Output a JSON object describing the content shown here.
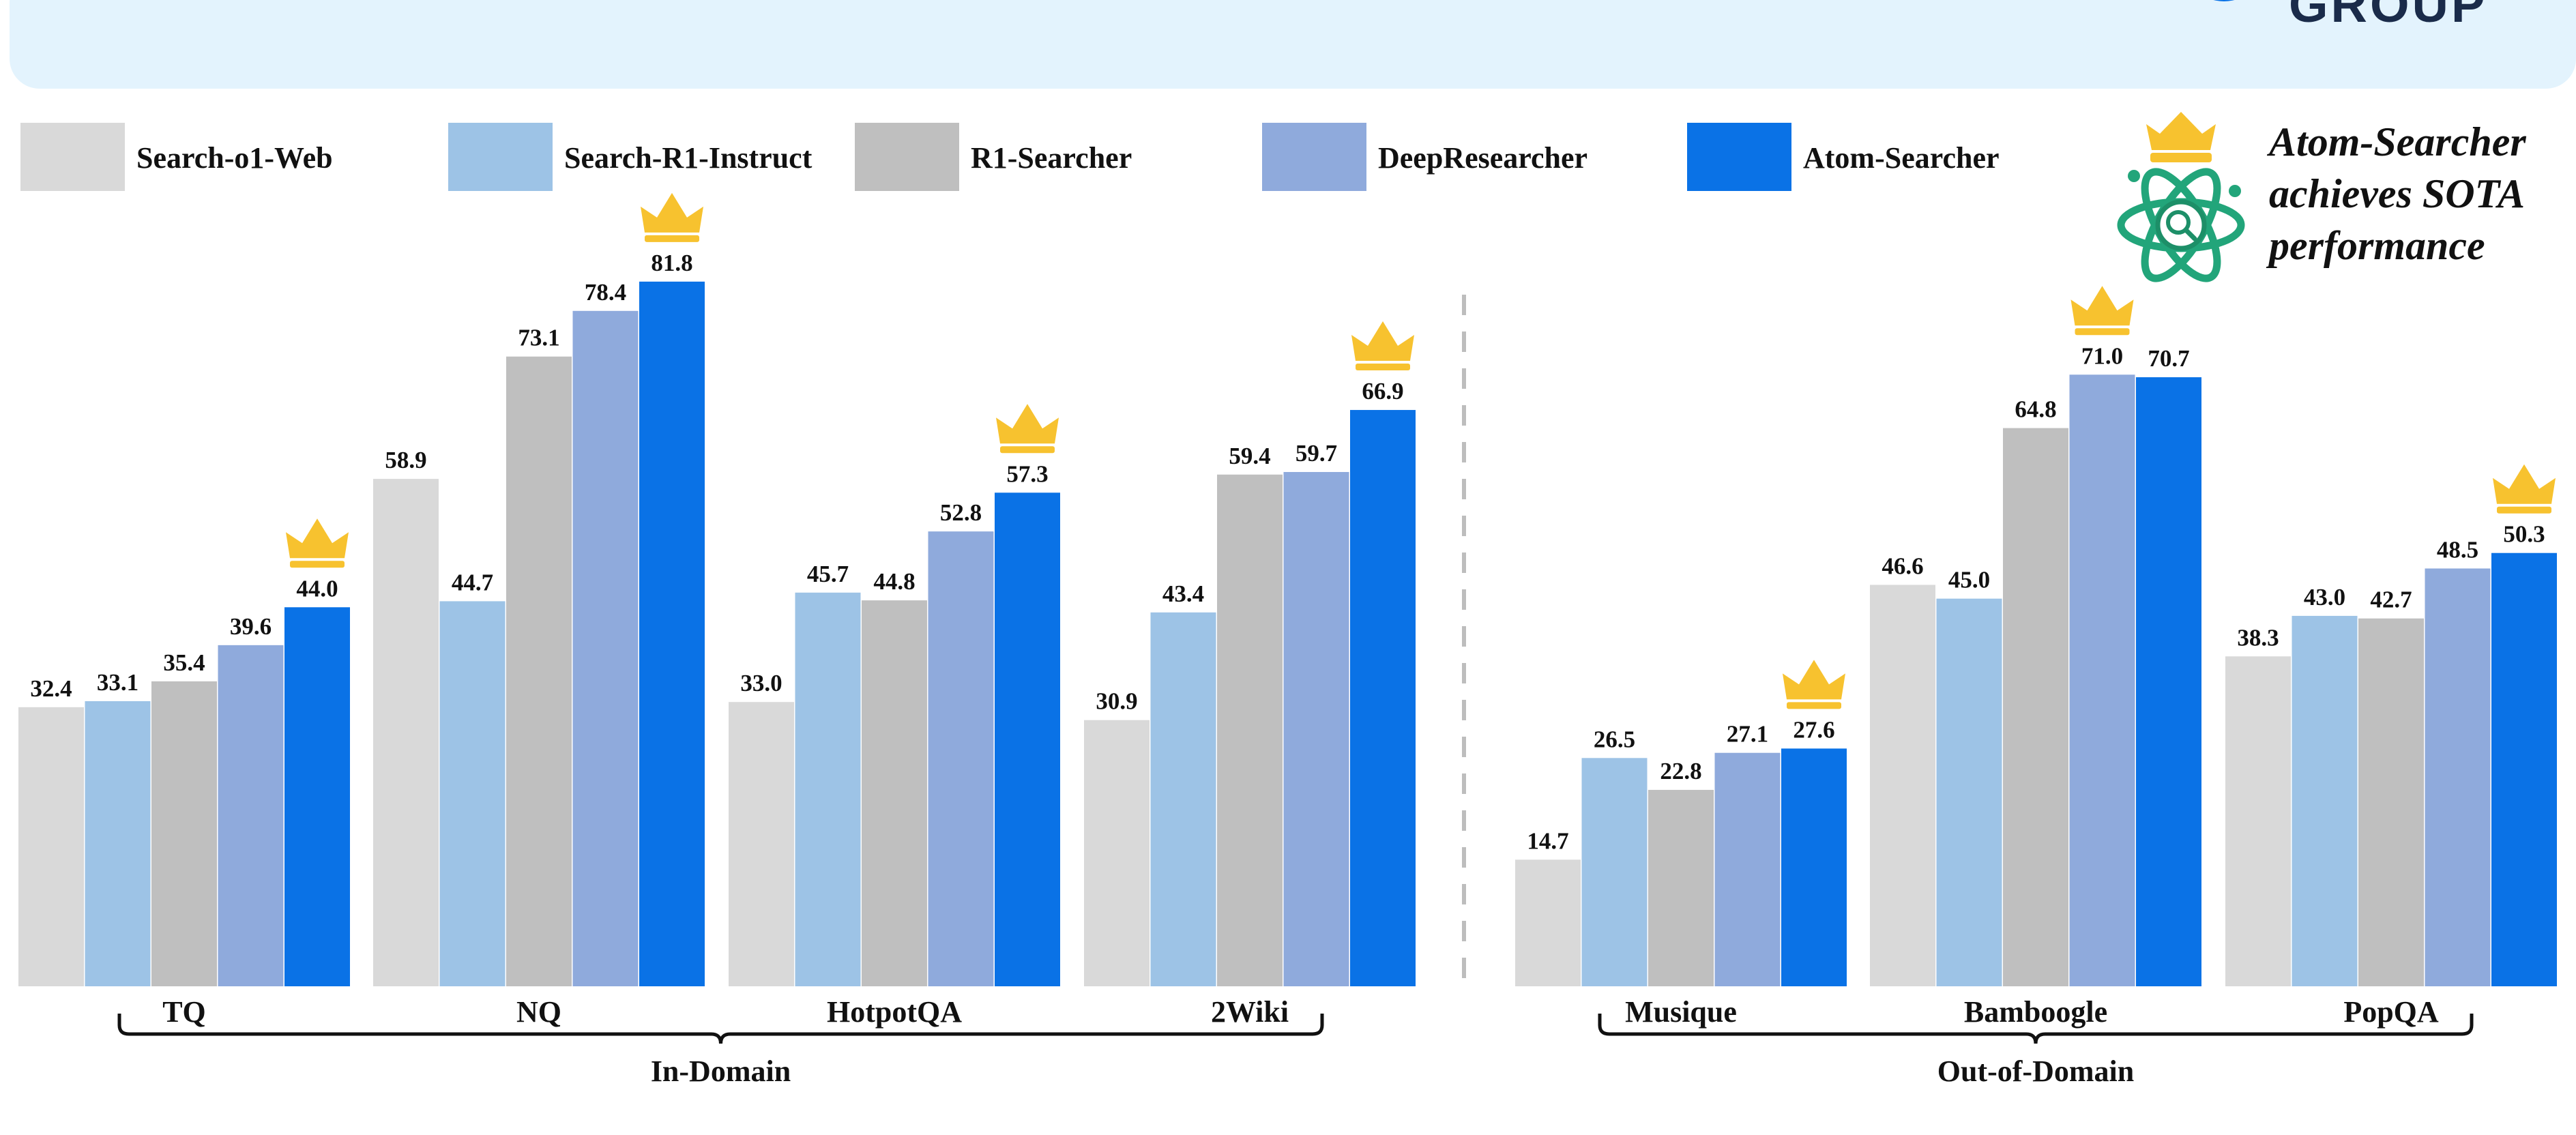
{
  "header": {
    "logo_text": "GROUP"
  },
  "colors": {
    "banner": "#e3f3fd",
    "crown": "#f7c22f",
    "atom": "#22a57a",
    "series": [
      "#d9d9d9",
      "#9dc3e6",
      "#bfbfbf",
      "#8faadc",
      "#0a72e6"
    ]
  },
  "callout": {
    "lines": [
      "Atom-Searcher",
      "achieves SOTA",
      "performance"
    ]
  },
  "chart_data": {
    "type": "bar",
    "title": "",
    "xlabel": "",
    "ylabel": "",
    "ylim": [
      0,
      100
    ],
    "grid": false,
    "legend_position": "top",
    "categories": [
      "TQ",
      "NQ",
      "HotpotQA",
      "2Wiki",
      "Musique",
      "Bamboogle",
      "PopQA"
    ],
    "groups": [
      {
        "label": "In-Domain",
        "categories": [
          "TQ",
          "NQ",
          "HotpotQA",
          "2Wiki"
        ]
      },
      {
        "label": "Out-of-Domain",
        "categories": [
          "Musique",
          "Bamboogle",
          "PopQA"
        ]
      }
    ],
    "series": [
      {
        "name": "Search-o1-Web",
        "values": [
          32.4,
          58.9,
          33.0,
          30.9,
          14.7,
          46.6,
          38.3
        ]
      },
      {
        "name": "Search-R1-Instruct",
        "values": [
          33.1,
          44.7,
          45.7,
          43.4,
          26.5,
          45.0,
          43.0
        ]
      },
      {
        "name": "R1-Searcher",
        "values": [
          35.4,
          73.1,
          44.8,
          59.4,
          22.8,
          64.8,
          42.7
        ]
      },
      {
        "name": "DeepResearcher",
        "values": [
          39.6,
          78.4,
          52.8,
          59.7,
          27.1,
          71.0,
          48.5
        ]
      },
      {
        "name": "Atom-Searcher",
        "values": [
          44.0,
          81.8,
          57.3,
          66.9,
          27.6,
          70.7,
          50.3
        ]
      }
    ],
    "value_labels": [
      [
        "32.4",
        "58.9",
        "33.0",
        "30.9",
        "14.7",
        "46.6",
        "38.3"
      ],
      [
        "33.1",
        "44.7",
        "45.7",
        "43.4",
        "26.5",
        "45.0",
        "43.0"
      ],
      [
        "35.4",
        "73.1",
        "44.8",
        "59.4",
        "22.8",
        "64.8",
        "42.7"
      ],
      [
        "39.6",
        "78.4",
        "52.8",
        "59.7",
        "27.1",
        "71.0",
        "48.5"
      ],
      [
        "44.0",
        "81.8",
        "57.3",
        "66.9",
        "27.6",
        "70.7",
        "50.3"
      ]
    ],
    "crown_series_index": [
      4,
      4,
      4,
      4,
      4,
      3,
      4
    ]
  }
}
